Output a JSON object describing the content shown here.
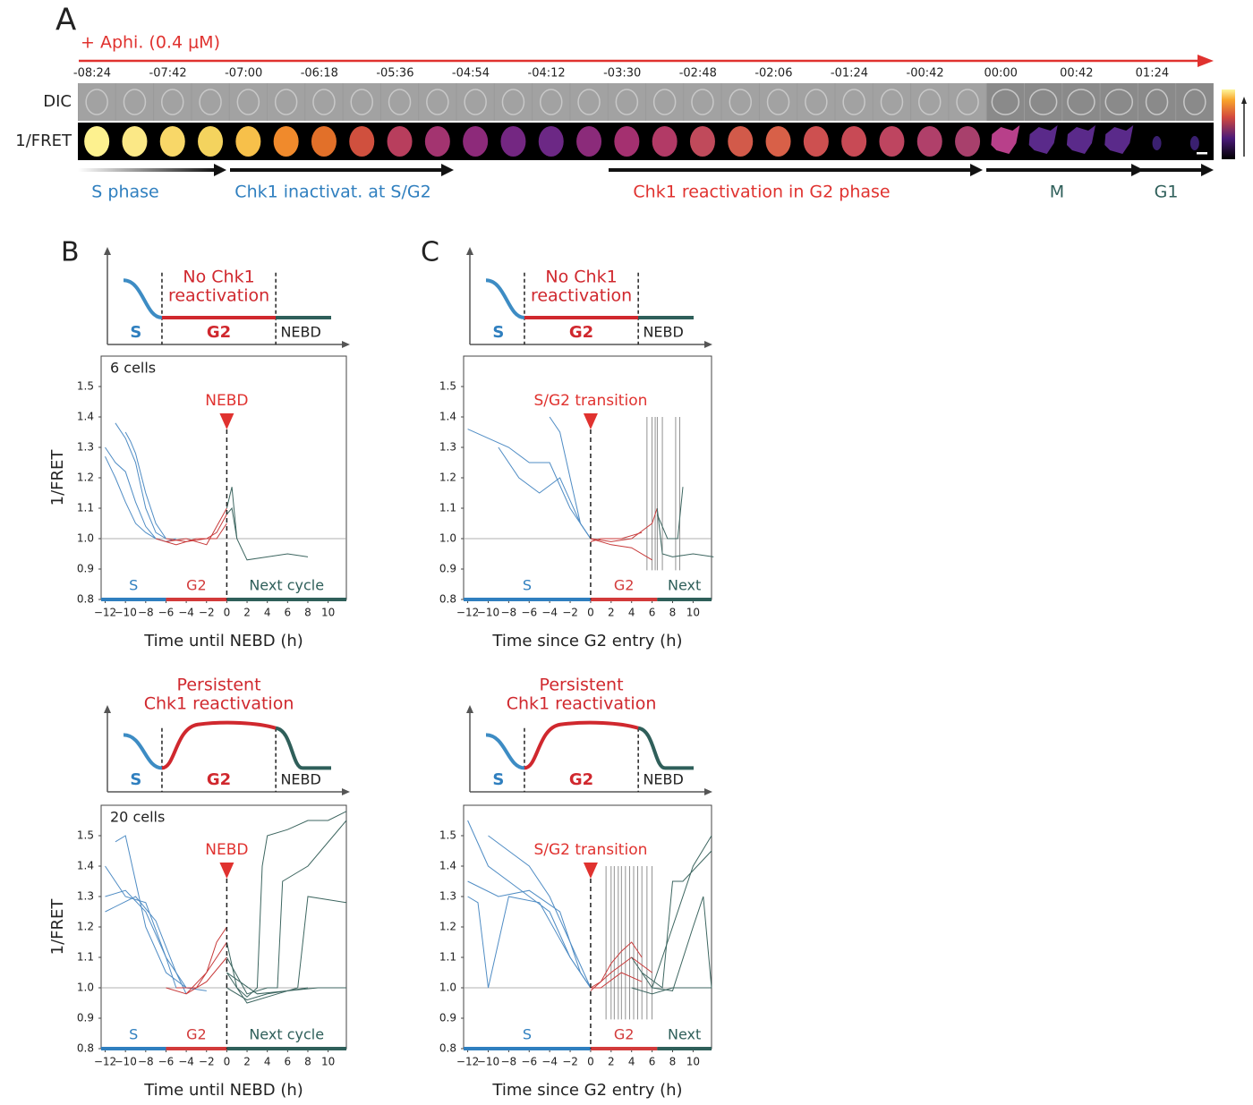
{
  "panel_a": {
    "label": "A",
    "treatment": "+ Aphi. (0.4 μM)",
    "times": [
      "-08:24",
      "-07:42",
      "-07:00",
      "-06:18",
      "-05:36",
      "-04:54",
      "-04:12",
      "-03:30",
      "-02:48",
      "-02:06",
      "-01:24",
      "-00:42",
      "00:00",
      "00:42",
      "01:24"
    ],
    "rows": [
      "DIC",
      "1/FRET"
    ],
    "phases": [
      {
        "label": "S phase",
        "color": "#2f7fbf"
      },
      {
        "label": "Chk1 inactivat. at S/G2",
        "color": "#2f7fbf"
      },
      {
        "label": "Chk1 reactivation in G2 phase",
        "color": "#e0322f"
      },
      {
        "label": "M",
        "color": "#2f5f5a"
      },
      {
        "label": "G1",
        "color": "#2f5f5a"
      }
    ]
  },
  "panel_labels": [
    "B",
    "C"
  ],
  "chart_data": [
    {
      "type": "line",
      "schematic": {
        "title_lines": [
          "No Chk1",
          "reactivation"
        ],
        "labels": [
          "S",
          "G2",
          "NEBD"
        ],
        "reactivation": false
      },
      "annotation": "6 cells",
      "marker": {
        "label": "NEBD",
        "x": 0
      },
      "xlabel": "Time until NEBD (h)",
      "ylabel": "1/FRET",
      "xlim": [
        -12.4,
        11.8
      ],
      "ylim": [
        0.8,
        1.6
      ],
      "xticks": [
        {
          "value": -12,
          "label": "−12"
        },
        {
          "value": -10,
          "label": "−10"
        },
        {
          "value": -8,
          "label": "−8"
        },
        {
          "value": -6,
          "label": "−6"
        },
        {
          "value": -4,
          "label": "−4"
        },
        {
          "value": -2,
          "label": "−2"
        },
        0,
        2,
        4,
        6,
        8,
        10
      ],
      "yticks": [
        0.8,
        0.9,
        {
          "value": 1,
          "label": "1.0"
        },
        1.1,
        1.2,
        1.3,
        1.4,
        1.5
      ],
      "reference_y": 1,
      "phase_bar": [
        {
          "label": "S",
          "start": -12.4,
          "end": -6,
          "color": "#2f7fbf"
        },
        {
          "label": "G2",
          "start": -6,
          "end": 0,
          "color": "#d23a3a"
        },
        {
          "label": "Next cycle",
          "start": 0,
          "end": 11.8,
          "color": "#2f5f5a"
        }
      ],
      "series": [
        {
          "color": "#4f8cc4",
          "x": [
            -12,
            -11,
            -10,
            -9,
            -8,
            -7,
            -6,
            -5
          ],
          "values": [
            1.27,
            1.2,
            1.12,
            1.05,
            1.02,
            1.0,
            0.99,
            1.0
          ]
        },
        {
          "color": "#4f8cc4",
          "x": [
            -11,
            -10,
            -9,
            -8,
            -7,
            -6
          ],
          "values": [
            1.38,
            1.33,
            1.25,
            1.1,
            1.02,
            1.0
          ]
        },
        {
          "color": "#4f8cc4",
          "x": [
            -10,
            -9.5,
            -9,
            -8,
            -7,
            -6
          ],
          "values": [
            1.35,
            1.32,
            1.28,
            1.15,
            1.05,
            1.0
          ]
        },
        {
          "color": "#4f8cc4",
          "x": [
            -12,
            -11,
            -10,
            -9,
            -8,
            -7
          ],
          "values": [
            1.3,
            1.25,
            1.22,
            1.12,
            1.04,
            1.0
          ]
        },
        {
          "color": "#c83a3a",
          "x": [
            -6,
            -4,
            -2,
            -1,
            0
          ],
          "values": [
            1.0,
            0.99,
            1.0,
            1.02,
            1.08
          ]
        },
        {
          "color": "#c83a3a",
          "x": [
            -7,
            -5,
            -3,
            -1,
            0
          ],
          "values": [
            1.0,
            0.98,
            1.0,
            1.0,
            1.05
          ]
        },
        {
          "color": "#c83a3a",
          "x": [
            -6,
            -4,
            -2,
            0
          ],
          "values": [
            0.99,
            1.0,
            0.98,
            1.1
          ]
        },
        {
          "color": "#3d6660",
          "x": [
            0,
            0.5,
            1,
            2,
            4,
            6,
            8
          ],
          "values": [
            1.1,
            1.17,
            1.0,
            0.93,
            0.94,
            0.95,
            0.94
          ]
        },
        {
          "color": "#3d6660",
          "x": [
            0,
            0.5,
            1
          ],
          "values": [
            1.08,
            1.1,
            1.0
          ]
        }
      ]
    },
    {
      "type": "line",
      "schematic": {
        "title_lines": [
          "No Chk1",
          "reactivation"
        ],
        "labels": [
          "S",
          "G2",
          "NEBD"
        ],
        "reactivation": false
      },
      "marker": {
        "label": "S/G2 transition",
        "x": 0
      },
      "xlabel": "Time since G2 entry (h)",
      "xlim": [
        -12.4,
        11.8
      ],
      "ylim": [
        0.8,
        1.6
      ],
      "xticks": [
        {
          "value": -12,
          "label": "−12"
        },
        {
          "value": -10,
          "label": "−10"
        },
        {
          "value": -8,
          "label": "−8"
        },
        {
          "value": -6,
          "label": "−6"
        },
        {
          "value": -4,
          "label": "−4"
        },
        {
          "value": -2,
          "label": "−2"
        },
        0,
        2,
        4,
        6,
        8,
        10
      ],
      "yticks": [
        0.8,
        0.9,
        {
          "value": 1,
          "label": "1.0"
        },
        1.1,
        1.2,
        1.3,
        1.4,
        1.5
      ],
      "reference_y": 1,
      "phase_bar": [
        {
          "label": "S",
          "start": -12.4,
          "end": 0,
          "color": "#2f7fbf"
        },
        {
          "label": "G2",
          "start": 0,
          "end": 6.5,
          "color": "#d23a3a"
        },
        {
          "label": "Next",
          "start": 6.5,
          "end": 11.8,
          "color": "#2f5f5a"
        }
      ],
      "division_times": [
        5.5,
        6,
        6.3,
        6.5,
        7,
        8.3,
        8.7
      ],
      "series": [
        {
          "color": "#4f8cc4",
          "x": [
            -12,
            -10,
            -8,
            -6,
            -4,
            -2,
            0
          ],
          "values": [
            1.36,
            1.33,
            1.3,
            1.25,
            1.25,
            1.1,
            1.0
          ]
        },
        {
          "color": "#4f8cc4",
          "x": [
            -9,
            -7,
            -5,
            -3,
            -1,
            0
          ],
          "values": [
            1.3,
            1.2,
            1.15,
            1.2,
            1.05,
            1.0
          ]
        },
        {
          "color": "#4f8cc4",
          "x": [
            -4,
            -3,
            -2,
            -1,
            0
          ],
          "values": [
            1.4,
            1.35,
            1.2,
            1.05,
            1.0
          ]
        },
        {
          "color": "#c83a3a",
          "x": [
            0,
            2,
            4,
            6,
            6.5
          ],
          "values": [
            1.0,
            0.99,
            1.0,
            1.05,
            1.1
          ]
        },
        {
          "color": "#c83a3a",
          "x": [
            0,
            2,
            4,
            6
          ],
          "values": [
            1.0,
            0.98,
            0.97,
            0.93
          ]
        },
        {
          "color": "#c83a3a",
          "x": [
            0,
            1,
            3,
            5
          ],
          "values": [
            0.99,
            1.0,
            1.0,
            1.02
          ]
        },
        {
          "color": "#3d6660",
          "x": [
            6.5,
            7,
            8,
            10,
            12
          ],
          "values": [
            1.1,
            0.95,
            0.94,
            0.95,
            0.94
          ]
        },
        {
          "color": "#3d6660",
          "x": [
            6.5,
            7.5,
            8.5,
            9
          ],
          "values": [
            1.08,
            1.0,
            1.0,
            1.17
          ]
        }
      ]
    },
    {
      "type": "line",
      "schematic": {
        "title_lines": [
          "Persistent",
          "Chk1 reactivation"
        ],
        "labels": [
          "S",
          "G2",
          "NEBD"
        ],
        "reactivation": true
      },
      "annotation": "20 cells",
      "marker": {
        "label": "NEBD",
        "x": 0
      },
      "xlabel": "Time until NEBD (h)",
      "ylabel": "1/FRET",
      "xlim": [
        -12.4,
        11.8
      ],
      "ylim": [
        0.8,
        1.6
      ],
      "xticks": [
        {
          "value": -12,
          "label": "−12"
        },
        {
          "value": -10,
          "label": "−10"
        },
        {
          "value": -8,
          "label": "−8"
        },
        {
          "value": -6,
          "label": "−6"
        },
        {
          "value": -4,
          "label": "−4"
        },
        {
          "value": -2,
          "label": "−2"
        },
        0,
        2,
        4,
        6,
        8,
        10
      ],
      "yticks": [
        0.8,
        0.9,
        {
          "value": 1,
          "label": "1.0"
        },
        1.1,
        1.2,
        1.3,
        1.4,
        1.5
      ],
      "reference_y": 1,
      "phase_bar": [
        {
          "label": "S",
          "start": -12.4,
          "end": -6,
          "color": "#2f7fbf"
        },
        {
          "label": "G2",
          "start": -6,
          "end": 0,
          "color": "#d23a3a"
        },
        {
          "label": "Next cycle",
          "start": 0,
          "end": 11.8,
          "color": "#2f5f5a"
        }
      ],
      "series": [
        {
          "color": "#4f8cc4",
          "x": [
            -12,
            -10,
            -8,
            -6,
            -4,
            -2
          ],
          "values": [
            1.4,
            1.3,
            1.28,
            1.1,
            1.0,
            0.99
          ]
        },
        {
          "color": "#4f8cc4",
          "x": [
            -11,
            -10,
            -9,
            -8,
            -6,
            -4
          ],
          "values": [
            1.48,
            1.5,
            1.35,
            1.2,
            1.05,
            1.0
          ]
        },
        {
          "color": "#4f8cc4",
          "x": [
            -12,
            -10,
            -8,
            -6,
            -5
          ],
          "values": [
            1.3,
            1.32,
            1.25,
            1.1,
            1.0
          ]
        },
        {
          "color": "#4f8cc4",
          "x": [
            -12,
            -9,
            -7,
            -5,
            -4
          ],
          "values": [
            1.25,
            1.3,
            1.22,
            1.05,
            0.98
          ]
        },
        {
          "color": "#c83a3a",
          "x": [
            -6,
            -4,
            -2,
            -1,
            0
          ],
          "values": [
            1.0,
            0.98,
            1.05,
            1.15,
            1.2
          ]
        },
        {
          "color": "#c83a3a",
          "x": [
            -5,
            -3,
            -1,
            0
          ],
          "values": [
            1.0,
            1.0,
            1.1,
            1.15
          ]
        },
        {
          "color": "#c83a3a",
          "x": [
            -4,
            -2,
            0
          ],
          "values": [
            0.98,
            1.02,
            1.1
          ]
        },
        {
          "color": "#3d6660",
          "x": [
            0,
            1,
            2,
            3,
            3.5,
            4,
            6,
            8,
            10,
            11.8
          ],
          "values": [
            1.15,
            1.0,
            0.97,
            1.0,
            1.4,
            1.5,
            1.52,
            1.55,
            1.55,
            1.58
          ]
        },
        {
          "color": "#3d6660",
          "x": [
            0,
            2,
            4,
            5,
            5.5,
            8,
            11.8
          ],
          "values": [
            1.1,
            0.98,
            1.0,
            1.0,
            1.35,
            1.4,
            1.55
          ]
        },
        {
          "color": "#3d6660",
          "x": [
            0,
            2,
            5,
            7,
            8,
            11.8
          ],
          "values": [
            1.05,
            0.95,
            0.98,
            1.0,
            1.3,
            1.28
          ]
        },
        {
          "color": "#3d6660",
          "x": [
            0,
            3,
            6,
            9,
            11.8
          ],
          "values": [
            1.05,
            0.98,
            0.99,
            1.0,
            1.0
          ]
        },
        {
          "color": "#3d6660",
          "x": [
            0,
            2,
            4,
            6,
            8
          ],
          "values": [
            1.0,
            0.96,
            0.98,
            0.99,
            1.0
          ]
        }
      ]
    },
    {
      "type": "line",
      "schematic": {
        "title_lines": [
          "Persistent",
          "Chk1 reactivation"
        ],
        "labels": [
          "S",
          "G2",
          "NEBD"
        ],
        "reactivation": true
      },
      "marker": {
        "label": "S/G2 transition",
        "x": 0
      },
      "xlabel": "Time since G2 entry (h)",
      "xlim": [
        -12.4,
        11.8
      ],
      "ylim": [
        0.8,
        1.6
      ],
      "xticks": [
        {
          "value": -12,
          "label": "−12"
        },
        {
          "value": -10,
          "label": "−10"
        },
        {
          "value": -8,
          "label": "−8"
        },
        {
          "value": -6,
          "label": "−6"
        },
        {
          "value": -4,
          "label": "−4"
        },
        {
          "value": -2,
          "label": "−2"
        },
        0,
        2,
        4,
        6,
        8,
        10
      ],
      "yticks": [
        0.8,
        0.9,
        {
          "value": 1,
          "label": "1.0"
        },
        1.1,
        1.2,
        1.3,
        1.4,
        1.5
      ],
      "reference_y": 1,
      "phase_bar": [
        {
          "label": "S",
          "start": -12.4,
          "end": 0,
          "color": "#2f7fbf"
        },
        {
          "label": "G2",
          "start": 0,
          "end": 6.5,
          "color": "#d23a3a"
        },
        {
          "label": "Next",
          "start": 6.5,
          "end": 11.8,
          "color": "#2f5f5a"
        }
      ],
      "division_times": [
        1.5,
        2,
        2.3,
        2.7,
        3,
        3.4,
        3.8,
        4.2,
        4.6,
        5,
        5.5,
        6
      ],
      "series": [
        {
          "color": "#4f8cc4",
          "x": [
            -12,
            -10,
            -8,
            -6,
            -4,
            -2,
            0
          ],
          "values": [
            1.55,
            1.4,
            1.35,
            1.3,
            1.25,
            1.1,
            1.0
          ]
        },
        {
          "color": "#4f8cc4",
          "x": [
            -12,
            -9,
            -6,
            -3,
            -1,
            0
          ],
          "values": [
            1.35,
            1.3,
            1.32,
            1.25,
            1.05,
            1.0
          ]
        },
        {
          "color": "#4f8cc4",
          "x": [
            -10,
            -8,
            -6,
            -4,
            -2,
            0
          ],
          "values": [
            1.5,
            1.45,
            1.4,
            1.3,
            1.15,
            1.0
          ]
        },
        {
          "color": "#4f8cc4",
          "x": [
            -12,
            -11,
            -10,
            -8,
            -5,
            -2,
            0
          ],
          "values": [
            1.3,
            1.28,
            1.0,
            1.3,
            1.28,
            1.1,
            1.0
          ]
        },
        {
          "color": "#c83a3a",
          "x": [
            0,
            1,
            2,
            3,
            4,
            5
          ],
          "values": [
            1.0,
            1.02,
            1.08,
            1.12,
            1.15,
            1.1
          ]
        },
        {
          "color": "#c83a3a",
          "x": [
            0,
            2,
            4,
            6
          ],
          "values": [
            0.99,
            1.05,
            1.1,
            1.05
          ]
        },
        {
          "color": "#c83a3a",
          "x": [
            0,
            1,
            3,
            5
          ],
          "values": [
            1.0,
            1.0,
            1.05,
            1.02
          ]
        },
        {
          "color": "#3d6660",
          "x": [
            4,
            6,
            8,
            10,
            11.8
          ],
          "values": [
            1.1,
            1.0,
            1.2,
            1.4,
            1.5
          ]
        },
        {
          "color": "#3d6660",
          "x": [
            5,
            7,
            8,
            9,
            11.8
          ],
          "values": [
            1.05,
            1.0,
            1.35,
            1.35,
            1.45
          ]
        },
        {
          "color": "#3d6660",
          "x": [
            4,
            6,
            8,
            10,
            11.8
          ],
          "values": [
            1.0,
            0.98,
            1.0,
            1.0,
            1.0
          ]
        },
        {
          "color": "#3d6660",
          "x": [
            6,
            8,
            10,
            11,
            11.8
          ],
          "values": [
            1.0,
            0.99,
            1.2,
            1.3,
            1.0
          ]
        }
      ]
    }
  ]
}
